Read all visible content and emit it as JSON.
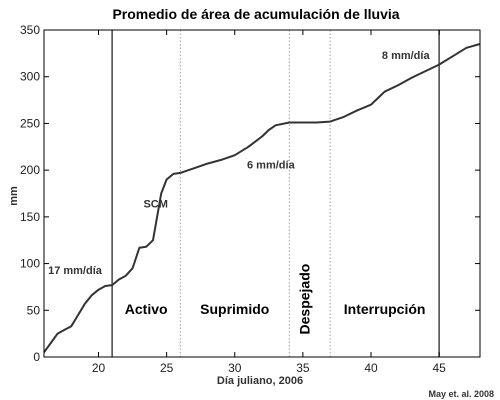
{
  "chart_data": {
    "type": "line",
    "title": "Promedio de área de acumulación de lluvia",
    "xlabel": "Día juliano, 2006",
    "ylabel": "mm",
    "xlim": [
      16,
      48
    ],
    "ylim": [
      0,
      350
    ],
    "xticks": [
      "20",
      "25",
      "30",
      "35",
      "40",
      "45"
    ],
    "xtick_values": [
      20,
      25,
      30,
      35,
      40,
      45
    ],
    "yticks": [
      "0",
      "50",
      "100",
      "150",
      "200",
      "250",
      "300",
      "350"
    ],
    "ytick_values": [
      0,
      50,
      100,
      150,
      200,
      250,
      300,
      350
    ],
    "grid": false,
    "series": [
      {
        "x": [
          16,
          16.5,
          17,
          17.5,
          18,
          18.5,
          19,
          19.5,
          20,
          20.5,
          21,
          21.5,
          22,
          22.5,
          23,
          23.5,
          24,
          24.3,
          24.6,
          25,
          25.5,
          26,
          27,
          28,
          29,
          30,
          31,
          32,
          32.5,
          33,
          34,
          35,
          36,
          37,
          38,
          39,
          40,
          41,
          42,
          43,
          44,
          45,
          46,
          47,
          48
        ],
        "y": [
          5,
          15,
          25,
          29,
          33,
          45,
          57,
          66,
          72,
          76,
          77,
          83,
          87,
          95,
          117,
          118,
          125,
          150,
          175,
          190,
          196,
          197,
          202,
          207,
          211,
          216,
          225,
          236,
          243,
          248,
          251,
          251,
          251,
          252,
          257,
          264,
          270,
          284,
          291,
          299,
          306,
          313,
          322,
          331,
          335
        ]
      }
    ],
    "vlines": [
      {
        "x": 21,
        "style": "solid"
      },
      {
        "x": 26,
        "style": "dotted"
      },
      {
        "x": 34,
        "style": "dotted"
      },
      {
        "x": 37,
        "style": "dotted"
      },
      {
        "x": 45,
        "style": "solid"
      }
    ],
    "phases": [
      {
        "label": "Activo",
        "x": 23.5,
        "y": 46
      },
      {
        "label": "Suprimido",
        "x": 30,
        "y": 46
      },
      {
        "label": "Despejado",
        "x": 35.5,
        "y": 62,
        "vertical": true
      },
      {
        "label": "Interrupción",
        "x": 41,
        "y": 46
      }
    ],
    "annotations": [
      {
        "text": "17 mm/día",
        "x": 16.3,
        "y": 89
      },
      {
        "text": "SCM",
        "x": 23.3,
        "y": 160
      },
      {
        "text": "6 mm/día",
        "x": 30.9,
        "y": 202
      },
      {
        "text": "8 mm/día",
        "x": 40.8,
        "y": 319
      }
    ],
    "credit": "May et. al. 2008"
  }
}
